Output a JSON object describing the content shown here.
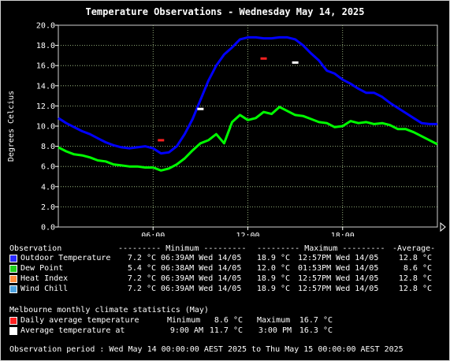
{
  "title": "Temperature Observations - Wednesday May 14, 2025",
  "chart_data": {
    "type": "line",
    "ylabel": "Degrees Celcius",
    "ylim": [
      0,
      20
    ],
    "y_ticks": [
      "0.0",
      "2.0",
      "4.0",
      "6.0",
      "8.0",
      "10.0",
      "12.0",
      "14.0",
      "16.0",
      "18.0",
      "20.0"
    ],
    "xlim_hours": [
      0,
      24
    ],
    "x_ticks": [
      {
        "hour": 6,
        "label": "06:00"
      },
      {
        "hour": 12,
        "label": "12:00"
      },
      {
        "hour": 18,
        "label": "18:00"
      }
    ],
    "grid": true,
    "series": [
      {
        "name": "Outdoor Temperature",
        "color": "#0000ff",
        "x": [
          0,
          0.5,
          1,
          1.5,
          2,
          2.5,
          3,
          3.5,
          4,
          4.5,
          5,
          5.5,
          6,
          6.5,
          7,
          7.5,
          8,
          8.5,
          9,
          9.5,
          10,
          10.5,
          11,
          11.5,
          12,
          12.5,
          13,
          13.5,
          14,
          14.5,
          15,
          15.5,
          16,
          16.5,
          17,
          17.5,
          18,
          18.5,
          19,
          19.5,
          20,
          20.5,
          21,
          21.5,
          22,
          22.5,
          23,
          23.5,
          24
        ],
        "y": [
          10.8,
          10.3,
          9.9,
          9.5,
          9.2,
          8.8,
          8.4,
          8.1,
          7.9,
          7.8,
          7.9,
          8.0,
          7.8,
          7.3,
          7.4,
          8.0,
          9.2,
          10.7,
          12.6,
          14.5,
          16.0,
          17.1,
          17.8,
          18.6,
          18.8,
          18.8,
          18.7,
          18.7,
          18.8,
          18.8,
          18.6,
          18.0,
          17.2,
          16.5,
          15.5,
          15.2,
          14.6,
          14.2,
          13.7,
          13.3,
          13.3,
          12.9,
          12.3,
          11.8,
          11.3,
          10.8,
          10.3,
          10.2,
          10.2
        ]
      },
      {
        "name": "Dew Point",
        "color": "#00ff00",
        "x": [
          0,
          0.5,
          1,
          1.5,
          2,
          2.5,
          3,
          3.5,
          4,
          4.5,
          5,
          5.5,
          6,
          6.5,
          7,
          7.5,
          8,
          8.5,
          9,
          9.5,
          10,
          10.5,
          11,
          11.5,
          12,
          12.5,
          13,
          13.5,
          14,
          14.5,
          15,
          15.5,
          16,
          16.5,
          17,
          17.5,
          18,
          18.5,
          19,
          19.5,
          20,
          20.5,
          21,
          21.5,
          22,
          22.5,
          23,
          23.5,
          24
        ],
        "y": [
          7.9,
          7.5,
          7.2,
          7.1,
          6.9,
          6.6,
          6.5,
          6.2,
          6.1,
          6.0,
          6.0,
          5.9,
          5.9,
          5.6,
          5.8,
          6.2,
          6.8,
          7.6,
          8.3,
          8.6,
          9.2,
          8.3,
          10.4,
          11.1,
          10.6,
          10.8,
          11.4,
          11.2,
          11.9,
          11.5,
          11.1,
          11.0,
          10.7,
          10.4,
          10.3,
          9.9,
          10.0,
          10.5,
          10.3,
          10.4,
          10.2,
          10.3,
          10.1,
          9.7,
          9.7,
          9.4,
          9.0,
          8.6,
          8.2
        ]
      },
      {
        "name": "Heat Index",
        "color": "#ff8c3c",
        "x": [],
        "y": []
      },
      {
        "name": "Wind Chill",
        "color": "#4fa3e0",
        "x": [],
        "y": []
      }
    ],
    "climate_markers": [
      {
        "name": "Daily average temperature",
        "color": "#ff2020",
        "points": [
          {
            "x": 6.5,
            "y": 8.6
          },
          {
            "x": 13.0,
            "y": 16.7
          }
        ]
      },
      {
        "name": "Average temperature at",
        "color": "#ffffff",
        "points": [
          {
            "x": 9.0,
            "y": 11.7
          },
          {
            "x": 15.0,
            "y": 16.3
          }
        ]
      }
    ]
  },
  "legend": {
    "header": {
      "observation": "Observation",
      "minimum": "--------- Minimum ---------",
      "maximum": "--------- Maximum ---------",
      "average": "-Average-"
    },
    "rows": [
      {
        "name": "Outdoor Temperature",
        "color": "#2a2aff",
        "min_val": "7.2 °C",
        "min_time": "06:39AM Wed 14/05",
        "max_val": "18.9 °C",
        "max_time": "12:57PM Wed 14/05",
        "avg": "12.8 °C"
      },
      {
        "name": "Dew Point",
        "color": "#20d020",
        "min_val": "5.4 °C",
        "min_time": "06:38AM Wed 14/05",
        "max_val": "12.0 °C",
        "max_time": "01:53PM Wed 14/05",
        "avg": "8.6 °C"
      },
      {
        "name": "Heat Index",
        "color": "#ff8c3c",
        "min_val": "7.2 °C",
        "min_time": "06:39AM Wed 14/05",
        "max_val": "18.9 °C",
        "max_time": "12:57PM Wed 14/05",
        "avg": "12.8 °C"
      },
      {
        "name": "Wind Chill",
        "color": "#4fa3e0",
        "min_val": "7.2 °C",
        "min_time": "06:39AM Wed 14/05",
        "max_val": "18.9 °C",
        "max_time": "12:57PM Wed 14/05",
        "avg": "12.8 °C"
      }
    ]
  },
  "climate": {
    "header": "Melbourne monthly climate statistics (May)",
    "daily": {
      "label": "Daily average temperature",
      "min_label": "Minimum",
      "min_val": "8.6 °C",
      "max_label": "Maximum",
      "max_val": "16.7 °C",
      "color": "#ff2020"
    },
    "at": {
      "label": "Average temperature at",
      "t1": "9:00 AM",
      "v1": "11.7 °C",
      "t2": "3:00 PM",
      "v2": "16.3 °C",
      "color": "#ffffff"
    }
  },
  "period": "Observation period : Wed May 14 00:00:00 AEST 2025 to Thu May 15 00:00:00 AEST 2025"
}
